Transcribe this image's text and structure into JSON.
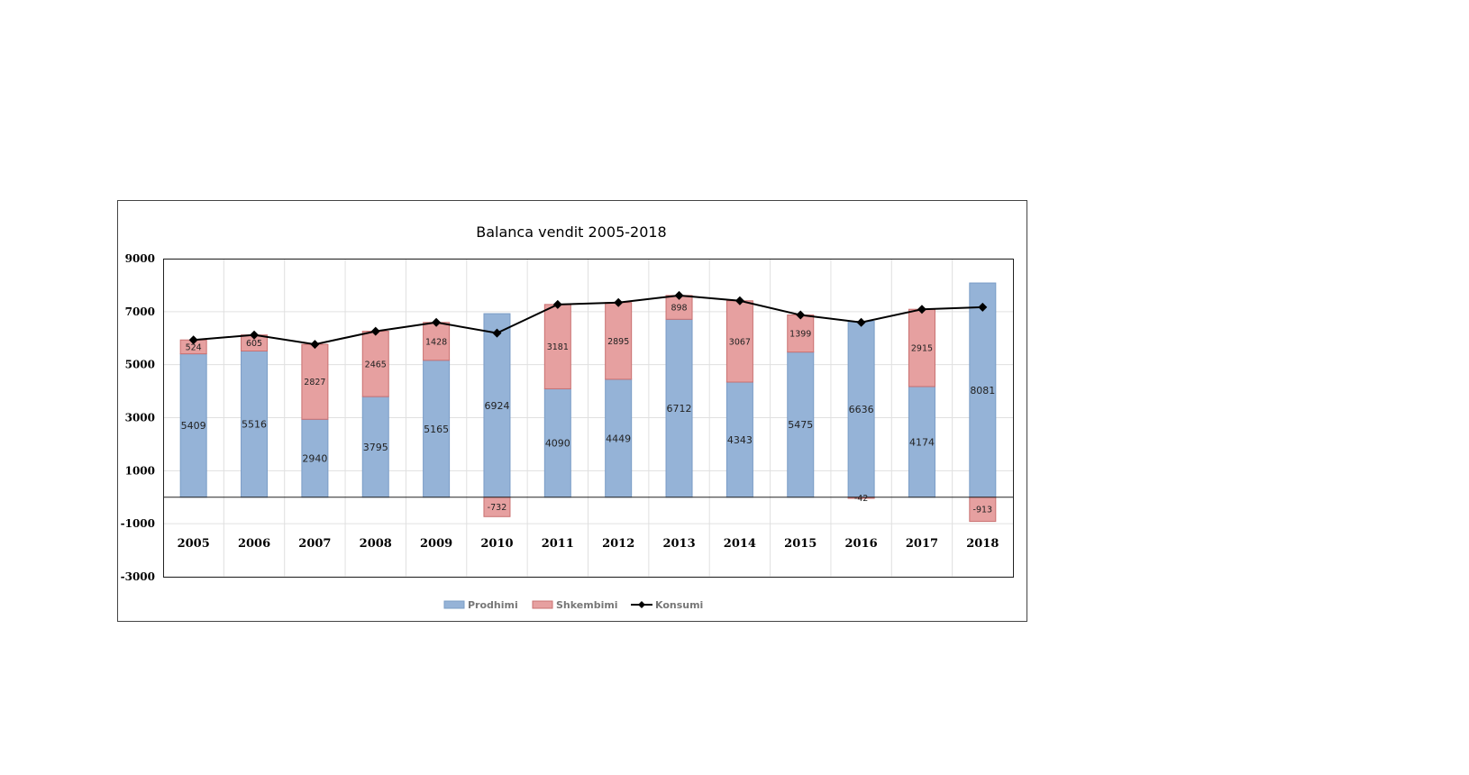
{
  "chart_data": {
    "type": "bar",
    "stacked": true,
    "title": "Balanca vendit 2005-2018",
    "xlabel": "",
    "ylabel": "",
    "ylim": [
      -3000,
      9000
    ],
    "yticks": [
      9000,
      7000,
      5000,
      3000,
      1000,
      -1000,
      -3000
    ],
    "grid": true,
    "legend_position": "bottom",
    "categories": [
      "2005",
      "2006",
      "2007",
      "2008",
      "2009",
      "2010",
      "2011",
      "2012",
      "2013",
      "2014",
      "2015",
      "2016",
      "2017",
      "2018"
    ],
    "series": [
      {
        "name": "Prodhimi",
        "kind": "bar",
        "color": "#95b3d7",
        "values": [
          5409,
          5516,
          2940,
          3795,
          5165,
          6924,
          4090,
          4449,
          6712,
          4343,
          5475,
          6636,
          4174,
          8081
        ]
      },
      {
        "name": "Shkembimi",
        "kind": "bar",
        "color": "#e6a0a0",
        "values": [
          524,
          605,
          2827,
          2465,
          1428,
          -732,
          3181,
          2895,
          898,
          3067,
          1399,
          -42,
          2915,
          -913
        ]
      },
      {
        "name": "Konsumi",
        "kind": "line",
        "color": "#000000",
        "values": [
          5933,
          6121,
          5767,
          6260,
          6593,
          6192,
          7271,
          7344,
          7610,
          7410,
          6874,
          6594,
          7089,
          7168
        ]
      }
    ]
  }
}
